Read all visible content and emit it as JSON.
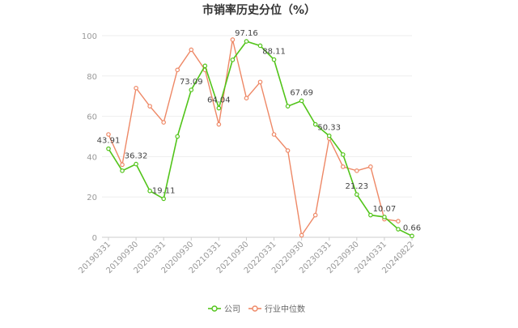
{
  "chart_data": {
    "type": "line",
    "title": "市销率历史分位（%）",
    "xlabel": "",
    "ylabel": "",
    "ylim": [
      0,
      100
    ],
    "yticks": [
      0,
      20,
      40,
      60,
      80,
      100
    ],
    "grid": true,
    "legend_position": "bottom",
    "x_tick_labels": [
      "20190331",
      "20190930",
      "20200331",
      "20200930",
      "20210331",
      "20210930",
      "20220331",
      "20220930",
      "20230331",
      "20230930",
      "20240331",
      "20240822"
    ],
    "x_tick_index": [
      0,
      2,
      4,
      6,
      8,
      10,
      12,
      14,
      16,
      18,
      20,
      22
    ],
    "series": [
      {
        "name": "公司",
        "color": "#52c41a",
        "values": [
          43.91,
          33,
          36.32,
          23,
          19.11,
          50,
          73.09,
          85,
          64.04,
          88,
          97.16,
          95,
          88.11,
          65,
          67.69,
          56,
          50.33,
          41,
          21.23,
          11,
          10.07,
          4,
          0.66
        ]
      },
      {
        "name": "行业中位数",
        "color": "#ee8866",
        "values": [
          51,
          36,
          74,
          65,
          57,
          83,
          93,
          83,
          56,
          98,
          69,
          77,
          51,
          43,
          1,
          11,
          49,
          35,
          33,
          35,
          9,
          8,
          null
        ]
      }
    ],
    "data_labels": [
      {
        "series": 0,
        "index": 0,
        "text": "43.91"
      },
      {
        "series": 0,
        "index": 2,
        "text": "36.32"
      },
      {
        "series": 0,
        "index": 4,
        "text": "19.11"
      },
      {
        "series": 0,
        "index": 6,
        "text": "73.09"
      },
      {
        "series": 0,
        "index": 8,
        "text": "64.04"
      },
      {
        "series": 0,
        "index": 10,
        "text": "97.16"
      },
      {
        "series": 0,
        "index": 12,
        "text": "88.11"
      },
      {
        "series": 0,
        "index": 14,
        "text": "67.69"
      },
      {
        "series": 0,
        "index": 16,
        "text": "50.33"
      },
      {
        "series": 0,
        "index": 18,
        "text": "21.23"
      },
      {
        "series": 0,
        "index": 20,
        "text": "10.07"
      },
      {
        "series": 0,
        "index": 22,
        "text": "0.66"
      }
    ]
  }
}
